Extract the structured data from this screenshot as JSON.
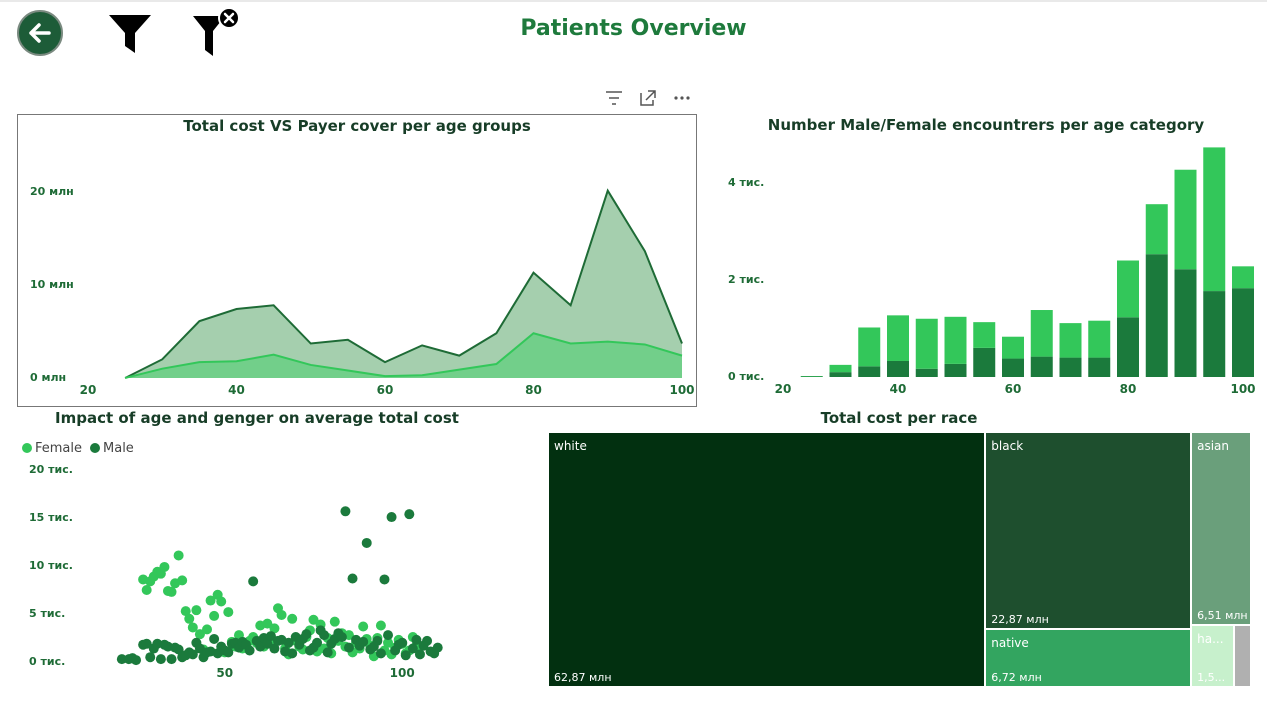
{
  "page": {
    "title": "Patients Overview"
  },
  "toolbar": {
    "back_icon": "arrow-left-icon",
    "filter_icon": "funnel-icon",
    "clear_filter_icon": "funnel-clear-icon"
  },
  "visual_header": {
    "icons": [
      "filter-icon",
      "focus-mode-icon",
      "more-options-icon"
    ]
  },
  "colors": {
    "title": "#1e7a3c",
    "dark_green": "#1b7a3c",
    "light_green": "#33c75a",
    "area_total": "#a5cfae",
    "area_cover": "#72cf8a"
  },
  "charts": [
    {
      "id": "cost_vs_cover",
      "chart_data": {
        "type": "area",
        "title": "Total cost VS Payer cover per age groups",
        "x": [
          25,
          30,
          35,
          40,
          45,
          50,
          55,
          60,
          65,
          70,
          75,
          80,
          85,
          90,
          95,
          100
        ],
        "series": [
          {
            "values": [
              0,
              2,
              6.1,
              7.4,
              7.8,
              3.7,
              4.1,
              1.7,
              3.5,
              2.4,
              4.8,
              11.3,
              7.8,
              20.1,
              13.6,
              3.7
            ]
          },
          {
            "values": [
              0,
              1,
              1.7,
              1.8,
              2.5,
              1.4,
              0.8,
              0.2,
              0.3,
              0.9,
              1.5,
              4.8,
              3.7,
              3.9,
              3.6,
              2.4
            ]
          }
        ],
        "xlim": [
          20,
          100
        ],
        "ylim": [
          0,
          25
        ],
        "x_ticks": [
          "20",
          "40",
          "60",
          "80",
          "100"
        ],
        "y_ticks": [
          "0 млн",
          "10 млн",
          "20 млн"
        ],
        "grid": false
      }
    },
    {
      "id": "encounters_by_gender",
      "chart_data": {
        "type": "bar",
        "title": "Number Male/Female encountrers per age category",
        "stacked": true,
        "x": [
          25,
          30,
          35,
          40,
          45,
          50,
          55,
          60,
          65,
          70,
          75,
          80,
          85,
          90,
          95,
          100
        ],
        "series": [
          {
            "values": [
              10,
              100,
              220,
              330,
              170,
              270,
              600,
              380,
              420,
              400,
              400,
              1230,
              2530,
              2220,
              1770,
              1830
            ]
          },
          {
            "values": [
              10,
              150,
              800,
              940,
              1030,
              970,
              530,
              450,
              960,
              710,
              760,
              1170,
              1030,
              2050,
              2960,
              450
            ]
          }
        ],
        "xlim": [
          20,
          100
        ],
        "ylim": [
          0,
          4800
        ],
        "x_ticks": [
          "20",
          "40",
          "60",
          "80",
          "100"
        ],
        "y_ticks": [
          "0 тис.",
          "2 тис.",
          "4 тис."
        ],
        "grid": false
      }
    },
    {
      "id": "age_gender_cost",
      "chart_data": {
        "type": "scatter",
        "title": "Impact of age and genger on average total cost",
        "legend": {
          "placement": "top-left",
          "entries": [
            "Female",
            "Male"
          ]
        },
        "series": [
          {
            "name": "Female",
            "points": [
              [
                27,
                8.6
              ],
              [
                28,
                7.5
              ],
              [
                29,
                8.4
              ],
              [
                30,
                8.9
              ],
              [
                31,
                9.4
              ],
              [
                32,
                9.2
              ],
              [
                33,
                9.9
              ],
              [
                34,
                7.4
              ],
              [
                35,
                7.3
              ],
              [
                36,
                8.2
              ],
              [
                37,
                11.1
              ],
              [
                38,
                8.5
              ],
              [
                39,
                5.3
              ],
              [
                40,
                4.5
              ],
              [
                41,
                3.6
              ],
              [
                42,
                5.4
              ],
              [
                43,
                2.9
              ],
              [
                44,
                1.3
              ],
              [
                45,
                3.4
              ],
              [
                46,
                6.4
              ],
              [
                47,
                4.8
              ],
              [
                48,
                7.0
              ],
              [
                49,
                6.3
              ],
              [
                50,
                1.0
              ],
              [
                51,
                5.2
              ],
              [
                52,
                2.1
              ],
              [
                53,
                1.6
              ],
              [
                54,
                2.8
              ],
              [
                55,
                1.4
              ],
              [
                56,
                1.9
              ],
              [
                57,
                2.2
              ],
              [
                58,
                2.6
              ],
              [
                59,
                2.0
              ],
              [
                60,
                3.8
              ],
              [
                61,
                1.6
              ],
              [
                62,
                4.0
              ],
              [
                63,
                2.0
              ],
              [
                64,
                3.5
              ],
              [
                65,
                5.6
              ],
              [
                66,
                4.9
              ],
              [
                67,
                1.4
              ],
              [
                68,
                0.8
              ],
              [
                69,
                4.5
              ],
              [
                70,
                2.2
              ],
              [
                71,
                1.6
              ],
              [
                72,
                1.3
              ],
              [
                73,
                2.6
              ],
              [
                74,
                3.3
              ],
              [
                75,
                4.4
              ],
              [
                76,
                1.1
              ],
              [
                77,
                3.9
              ],
              [
                78,
                1.4
              ],
              [
                79,
                2.5
              ],
              [
                80,
                0.9
              ],
              [
                81,
                4.2
              ],
              [
                82,
                2.2
              ],
              [
                83,
                3.0
              ],
              [
                84,
                1.6
              ],
              [
                85,
                2.8
              ],
              [
                86,
                1.0
              ],
              [
                87,
                2.0
              ],
              [
                88,
                1.4
              ],
              [
                89,
                3.7
              ],
              [
                90,
                2.4
              ],
              [
                91,
                1.7
              ],
              [
                92,
                0.6
              ],
              [
                93,
                2.5
              ],
              [
                94,
                3.8
              ],
              [
                95,
                1.2
              ],
              [
                96,
                2.0
              ],
              [
                97,
                0.8
              ],
              [
                98,
                1.5
              ],
              [
                99,
                2.3
              ],
              [
                100,
                1.9
              ],
              [
                101,
                0.9
              ],
              [
                102,
                1.2
              ],
              [
                103,
                2.6
              ],
              [
                104,
                1.7
              ]
            ]
          },
          {
            "name": "Male",
            "points": [
              [
                21,
                0.3
              ],
              [
                23,
                0.3
              ],
              [
                24,
                0.4
              ],
              [
                25,
                0.2
              ],
              [
                27,
                1.8
              ],
              [
                28,
                1.9
              ],
              [
                29,
                0.5
              ],
              [
                30,
                1.4
              ],
              [
                31,
                1.9
              ],
              [
                32,
                0.3
              ],
              [
                33,
                1.8
              ],
              [
                34,
                1.6
              ],
              [
                35,
                0.3
              ],
              [
                36,
                1.5
              ],
              [
                37,
                1.3
              ],
              [
                38,
                0.5
              ],
              [
                39,
                0.7
              ],
              [
                40,
                1.0
              ],
              [
                41,
                0.8
              ],
              [
                42,
                2.0
              ],
              [
                43,
                1.4
              ],
              [
                44,
                0.5
              ],
              [
                45,
                1.0
              ],
              [
                46,
                1.1
              ],
              [
                47,
                2.4
              ],
              [
                48,
                0.9
              ],
              [
                49,
                1.6
              ],
              [
                50,
                1.2
              ],
              [
                51,
                1.0
              ],
              [
                52,
                1.9
              ],
              [
                53,
                2.0
              ],
              [
                54,
                1.5
              ],
              [
                55,
                2.1
              ],
              [
                56,
                1.8
              ],
              [
                57,
                1.2
              ],
              [
                58,
                8.4
              ],
              [
                59,
                2.2
              ],
              [
                60,
                1.6
              ],
              [
                61,
                2.5
              ],
              [
                62,
                1.9
              ],
              [
                63,
                2.7
              ],
              [
                64,
                1.4
              ],
              [
                65,
                2.2
              ],
              [
                66,
                2.3
              ],
              [
                67,
                1.1
              ],
              [
                68,
                2.0
              ],
              [
                69,
                0.9
              ],
              [
                70,
                2.6
              ],
              [
                71,
                1.8
              ],
              [
                72,
                2.4
              ],
              [
                73,
                2.9
              ],
              [
                74,
                1.2
              ],
              [
                75,
                1.5
              ],
              [
                76,
                2.0
              ],
              [
                77,
                3.3
              ],
              [
                78,
                2.8
              ],
              [
                79,
                1.0
              ],
              [
                80,
                1.9
              ],
              [
                81,
                2.4
              ],
              [
                82,
                3.0
              ],
              [
                83,
                2.6
              ],
              [
                84,
                15.7
              ],
              [
                85,
                1.5
              ],
              [
                86,
                8.7
              ],
              [
                87,
                2.3
              ],
              [
                88,
                1.7
              ],
              [
                89,
                2.1
              ],
              [
                90,
                12.4
              ],
              [
                91,
                1.3
              ],
              [
                92,
                1.6
              ],
              [
                93,
                2.2
              ],
              [
                94,
                0.9
              ],
              [
                95,
                8.6
              ],
              [
                96,
                2.8
              ],
              [
                97,
                15.1
              ],
              [
                98,
                1.2
              ],
              [
                99,
                1.8
              ],
              [
                100,
                2.0
              ],
              [
                101,
                0.7
              ],
              [
                102,
                15.4
              ],
              [
                103,
                1.4
              ],
              [
                104,
                2.3
              ],
              [
                105,
                0.8
              ],
              [
                106,
                1.7
              ],
              [
                107,
                2.2
              ],
              [
                108,
                1.1
              ],
              [
                109,
                0.9
              ],
              [
                110,
                1.5
              ]
            ]
          }
        ],
        "xlim": [
          14,
          116
        ],
        "ylim": [
          0,
          20000
        ],
        "x_ticks": [
          "50",
          "100"
        ],
        "y_ticks": [
          "0 тис.",
          "5 тис.",
          "10 тис.",
          "15 тис.",
          "20 тис."
        ],
        "grid": false
      }
    },
    {
      "id": "cost_per_race",
      "chart_data": {
        "type": "treemap",
        "title": "Total cost per race",
        "items": [
          {
            "name": "white",
            "label": "62,87 млн",
            "value": 62.87,
            "color": "#023010"
          },
          {
            "name": "black",
            "label": "22,87 млн",
            "value": 22.87,
            "color": "#1e4f2e"
          },
          {
            "name": "native",
            "label": "6,72 млн",
            "value": 6.72,
            "color": "#33a560"
          },
          {
            "name": "asian",
            "label": "6,51 млн",
            "value": 6.51,
            "color": "#6a9f7b"
          },
          {
            "name": "ha...",
            "label": "1,5...",
            "value": 1.5,
            "color": "#c7f0cc"
          },
          {
            "name": "",
            "label": "",
            "value": 0.6,
            "color": "#b0b0b0"
          }
        ]
      }
    }
  ]
}
